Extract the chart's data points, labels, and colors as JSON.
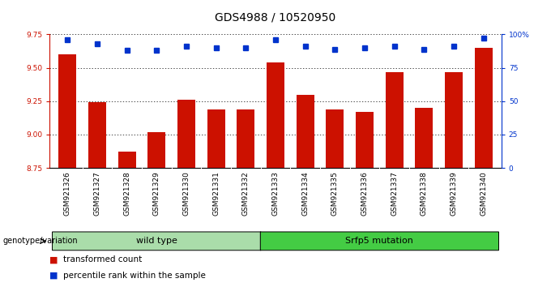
{
  "title": "GDS4988 / 10520950",
  "samples": [
    "GSM921326",
    "GSM921327",
    "GSM921328",
    "GSM921329",
    "GSM921330",
    "GSM921331",
    "GSM921332",
    "GSM921333",
    "GSM921334",
    "GSM921335",
    "GSM921336",
    "GSM921337",
    "GSM921338",
    "GSM921339",
    "GSM921340"
  ],
  "bar_values": [
    9.6,
    9.24,
    8.87,
    9.02,
    9.26,
    9.19,
    9.19,
    9.54,
    9.3,
    9.19,
    9.17,
    9.47,
    9.2,
    9.47,
    9.65
  ],
  "percentile_values": [
    96,
    93,
    88,
    88,
    91,
    90,
    90,
    96,
    91,
    89,
    90,
    91,
    89,
    91,
    97
  ],
  "ylim_left": [
    8.75,
    9.75
  ],
  "ylim_right": [
    0,
    100
  ],
  "yticks_left": [
    8.75,
    9.0,
    9.25,
    9.5,
    9.75
  ],
  "yticks_right": [
    0,
    25,
    50,
    75,
    100
  ],
  "bar_color": "#cc1100",
  "dot_color": "#0033cc",
  "grid_color": "#000000",
  "tick_area_color": "#c8c8c8",
  "groups": [
    {
      "label": "wild type",
      "start": 0,
      "end": 7,
      "color": "#aaddaa"
    },
    {
      "label": "Srfp5 mutation",
      "start": 7,
      "end": 15,
      "color": "#44cc44"
    }
  ],
  "legend_items": [
    {
      "color": "#cc1100",
      "label": "transformed count"
    },
    {
      "color": "#0033cc",
      "label": "percentile rank within the sample"
    }
  ],
  "genotype_label": "genotype/variation",
  "title_fontsize": 10,
  "tick_fontsize": 6.5,
  "label_fontsize": 8
}
